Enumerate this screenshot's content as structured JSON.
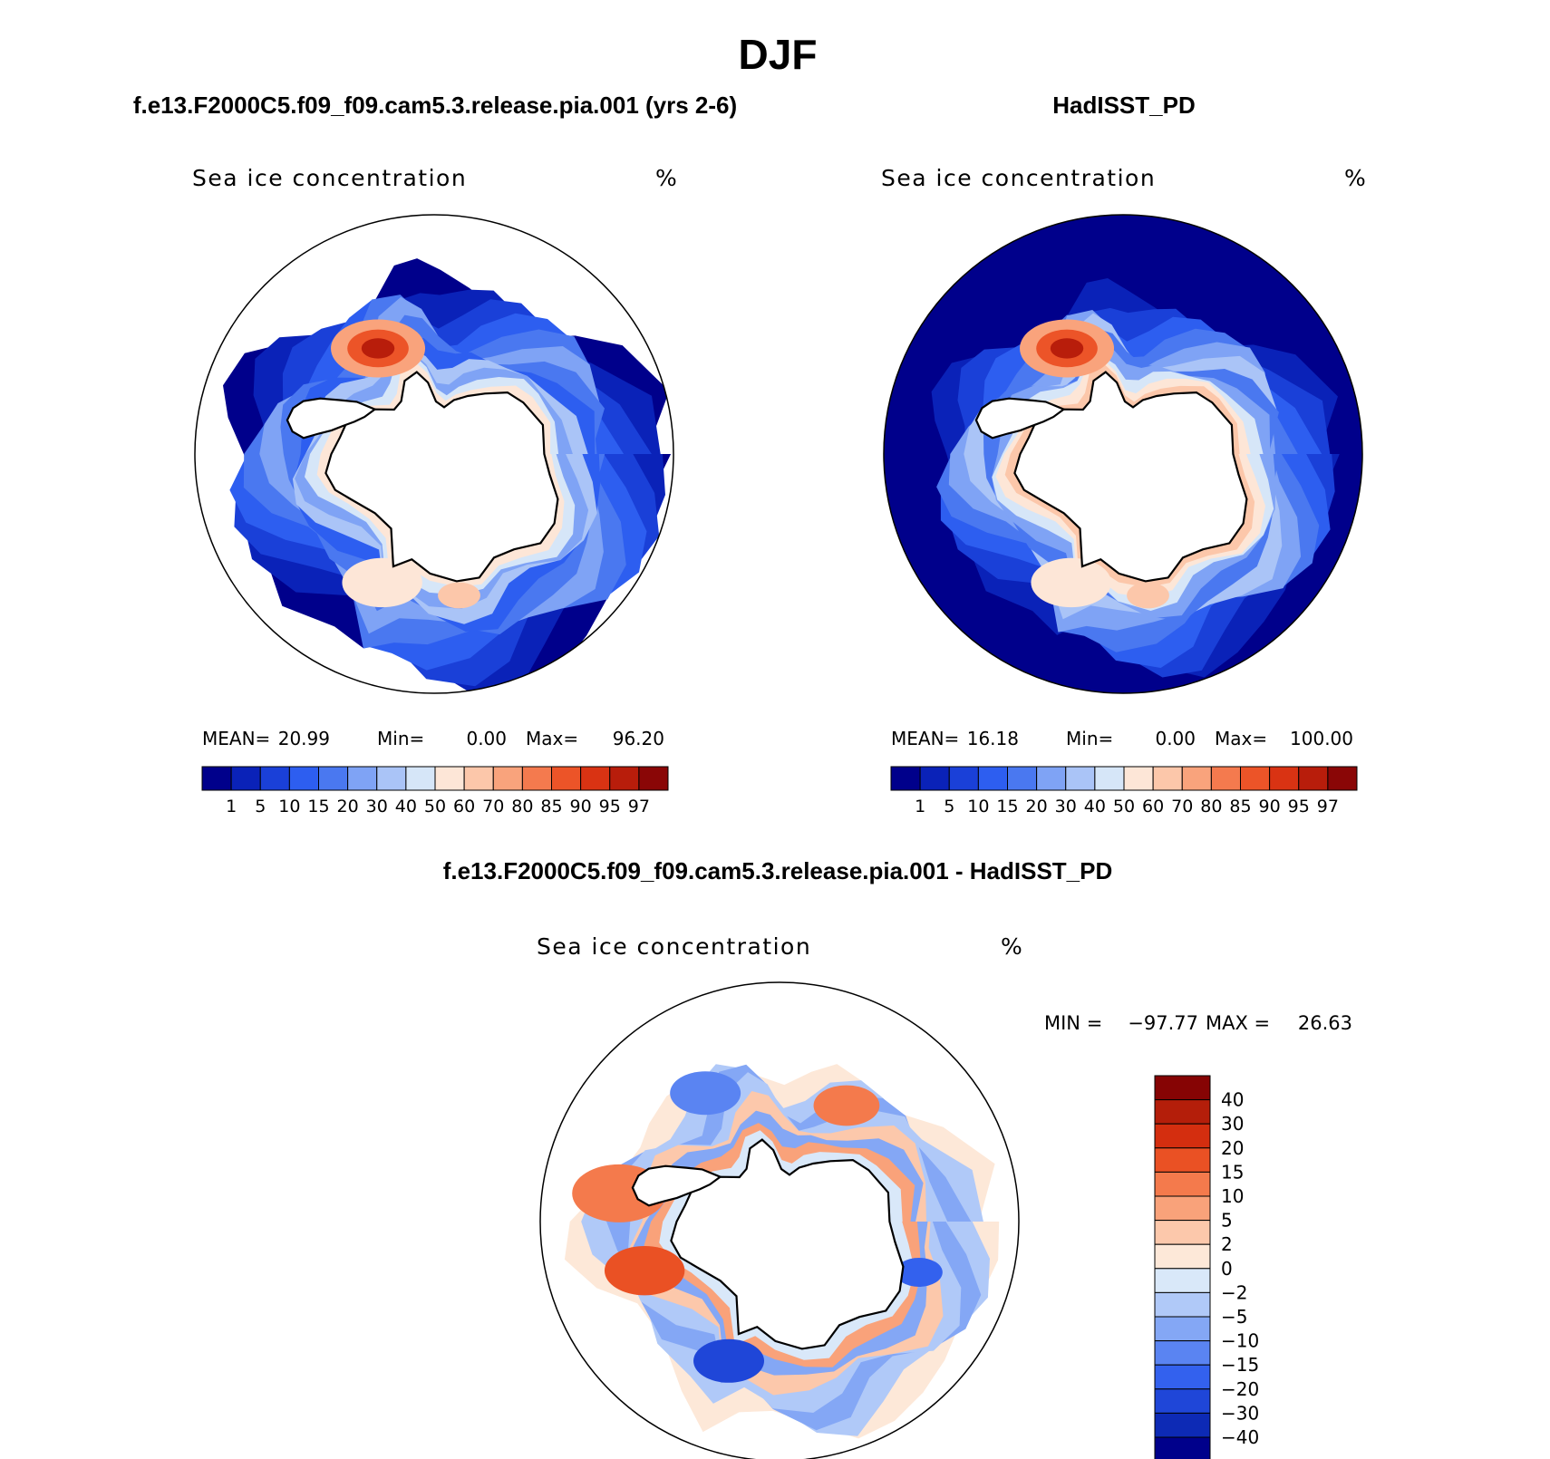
{
  "title": "DJF",
  "palette": {
    "ice": [
      "#00008b",
      "#0a22b8",
      "#1a40d8",
      "#2d5ef0",
      "#4a78f0",
      "#7fa3f5",
      "#aac4f7",
      "#d6e6f8",
      "#fde6d7",
      "#fcc7aa",
      "#f9a37c",
      "#f47a4e",
      "#ec5428",
      "#d93313",
      "#b81d0b",
      "#8a0606"
    ],
    "diff": [
      "#00008b",
      "#0d2ab5",
      "#1f46d8",
      "#3361ee",
      "#5a84f2",
      "#84a7f5",
      "#b0c9f8",
      "#d9e8f9",
      "#fde8d8",
      "#fcc8ab",
      "#f9a27a",
      "#f47a4c",
      "#ea5124",
      "#d42e0f",
      "#b41e0a",
      "#860404"
    ],
    "continent": "#ffffff",
    "coast": "#000000"
  },
  "panels": [
    {
      "id": "model",
      "heading": "f.e13.F2000C5.f09_f09.cam5.3.release.pia.001 (yrs 2-6)",
      "variable": "Sea ice concentration",
      "units": "%",
      "stats": {
        "mean_label": "MEAN=",
        "mean": "20.99",
        "min_label": "Min=",
        "min": "0.00",
        "max_label": "Max=",
        "max": "96.20"
      },
      "colorbar_labels": [
        "1",
        "5",
        "10",
        "15",
        "20",
        "30",
        "40",
        "50",
        "60",
        "70",
        "80",
        "85",
        "90",
        "95",
        "97"
      ],
      "field": {
        "edge_lat": -55,
        "ocean_fill": "none"
      }
    },
    {
      "id": "obs",
      "heading": "HadISST_PD",
      "variable": "Sea ice concentration",
      "units": "%",
      "stats": {
        "mean_label": "MEAN=",
        "mean": "16.18",
        "min_label": "Min=",
        "min": "0.00",
        "max_label": "Max=",
        "max": "100.00"
      },
      "colorbar_labels": [
        "1",
        "5",
        "10",
        "15",
        "20",
        "30",
        "40",
        "50",
        "60",
        "70",
        "80",
        "85",
        "90",
        "95",
        "97"
      ],
      "field": {
        "edge_lat": -45,
        "ocean_fill": "#00008b"
      }
    },
    {
      "id": "diff",
      "heading": "f.e13.F2000C5.f09_f09.cam5.3.release.pia.001 - HadISST_PD",
      "variable": "Sea ice concentration",
      "units": "%",
      "stats": {
        "min_label": "MIN =",
        "min": "−97.77",
        "max_label": "MAX =",
        "max": "26.63"
      },
      "colorbar_labels": [
        "40",
        "30",
        "20",
        "15",
        "10",
        "5",
        "2",
        "0",
        "−2",
        "−5",
        "−10",
        "−15",
        "−20",
        "−30",
        "−40"
      ]
    }
  ]
}
